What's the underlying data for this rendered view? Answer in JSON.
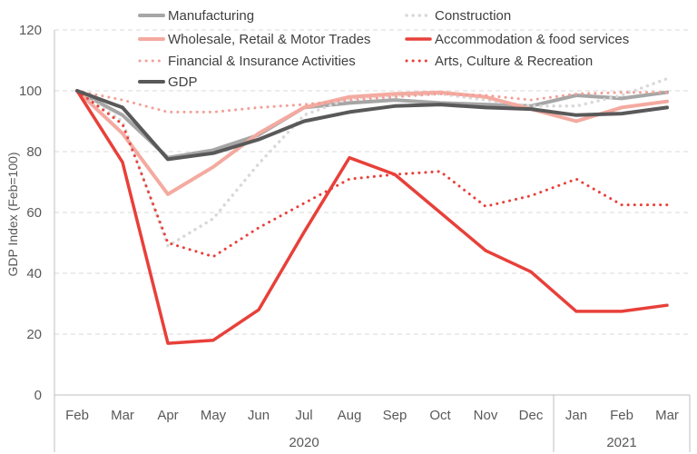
{
  "chart_data": {
    "type": "line",
    "title": "",
    "ylabel": "GDP Index (Feb=100)",
    "xlabel": "",
    "ylim": [
      0,
      120
    ],
    "yticks": [
      0,
      20,
      40,
      60,
      80,
      100,
      120
    ],
    "grid": true,
    "legend_position": "top",
    "categories": [
      "Feb",
      "Mar",
      "Apr",
      "May",
      "Jun",
      "Jul",
      "Aug",
      "Sep",
      "Oct",
      "Nov",
      "Dec",
      "Jan",
      "Feb",
      "Mar"
    ],
    "year_groups": [
      {
        "label": "2020",
        "start": 0,
        "end": 10
      },
      {
        "label": "2021",
        "start": 11,
        "end": 13
      }
    ],
    "series": [
      {
        "name": "Manufacturing",
        "color": "#a6a6a6",
        "style": "solid",
        "width": 4,
        "values": [
          100,
          92,
          78,
          80.5,
          85.5,
          94.5,
          96,
          97,
          96,
          95.5,
          95,
          98.5,
          97.5,
          99.5
        ]
      },
      {
        "name": "Construction",
        "color": "#d9d9d9",
        "style": "dotted",
        "width": 3.5,
        "values": [
          100,
          90,
          49,
          58,
          76,
          92,
          97.5,
          98.5,
          99,
          97,
          95,
          95,
          98.5,
          104
        ]
      },
      {
        "name": "Wholesale, Retail & Motor Trades",
        "color": "#f4aaa0",
        "style": "solid",
        "width": 4,
        "values": [
          100,
          86,
          66,
          75,
          86,
          94.5,
          98,
          99,
          99.5,
          98,
          94,
          90,
          94.5,
          96.5
        ]
      },
      {
        "name": "Accommodation & food services",
        "color": "#e8403a",
        "style": "solid",
        "width": 3.5,
        "values": [
          100,
          76.5,
          17,
          18,
          28,
          53.5,
          78,
          72.5,
          60,
          47.5,
          40.5,
          27.5,
          27.5,
          29.5
        ]
      },
      {
        "name": "Financial & Insurance Activities",
        "color": "#f2a098",
        "style": "dotted",
        "width": 3,
        "values": [
          100,
          97,
          93,
          93,
          94.5,
          95.5,
          97,
          98,
          99,
          98.5,
          97,
          99,
          99.5,
          99.5
        ]
      },
      {
        "name": "Arts, Culture & Recreation",
        "color": "#e8403a",
        "style": "dotted",
        "width": 3,
        "values": [
          100,
          89,
          50,
          45.5,
          55,
          63,
          71,
          72.5,
          73.5,
          62,
          65.5,
          71,
          62.5,
          62.5
        ]
      },
      {
        "name": "GDP",
        "color": "#595959",
        "style": "solid",
        "width": 4,
        "values": [
          100,
          94.5,
          77.5,
          79.5,
          84,
          90,
          93,
          95,
          95.5,
          94.5,
          94,
          92,
          92.5,
          94.5
        ]
      }
    ]
  }
}
